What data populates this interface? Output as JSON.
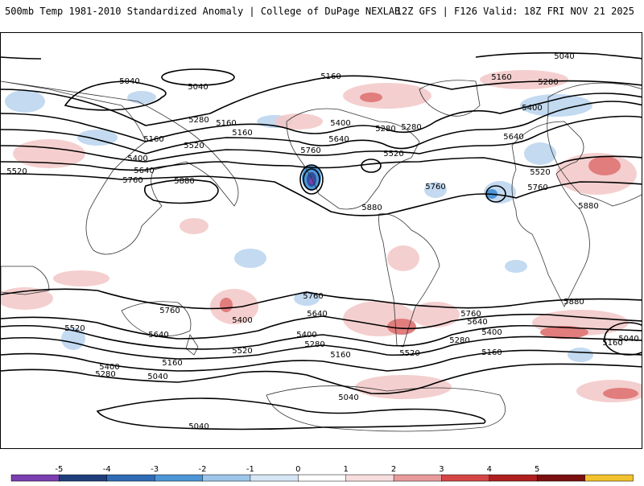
{
  "header": {
    "title_left": "500mb Temp 1981-2010 Standardized Anomaly | College of DuPage NEXLAB",
    "title_right": "12Z GFS | F126 Valid: 18Z FRI NOV 21 2025"
  },
  "contour_labels": [
    "5040",
    "5040",
    "5040",
    "5040",
    "5040",
    "5040",
    "5040",
    "5160",
    "5160",
    "5160",
    "5160",
    "5160",
    "5160",
    "5160",
    "5160",
    "5160",
    "5280",
    "5280",
    "5280",
    "5280",
    "5280",
    "5280",
    "5280",
    "5400",
    "5400",
    "5400",
    "5400",
    "5400",
    "5400",
    "5400",
    "5520",
    "5520",
    "5520",
    "5520",
    "5520",
    "5520",
    "5520",
    "5640",
    "5640",
    "5640",
    "5640",
    "5640",
    "5640",
    "5760",
    "5760",
    "5760",
    "5760",
    "5760",
    "5760",
    "5760",
    "5880",
    "5880",
    "5880",
    "5880"
  ],
  "colorbar": {
    "ticks": [
      "-5",
      "-4",
      "-3",
      "-2",
      "-1",
      "0",
      "1",
      "2",
      "3",
      "4",
      "5"
    ],
    "colors": [
      "#7b3fb0",
      "#1f3d7a",
      "#2f6bb5",
      "#4c95d6",
      "#9cc6ea",
      "#d6e6f5",
      "#ffffff",
      "#f7dede",
      "#e89b9b",
      "#d64545",
      "#b01f1f",
      "#7a0f0f",
      "#f2c12e"
    ]
  }
}
